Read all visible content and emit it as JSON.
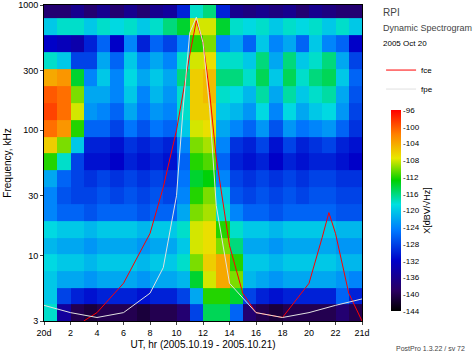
{
  "chart_data": {
    "type": "heatmap",
    "title": "RPI",
    "subtitle": "Dynamic Spectrogram",
    "annotations": [
      "2005 Oct 20",
      "PostPro 1.3.22 / sv 72"
    ],
    "x_label": "UT, hr (2005.10.19 - 2005.10.21)",
    "y_label": "Frequency, kHz",
    "log": "y",
    "legend": "right",
    "xlim": [
      0,
      24
    ],
    "ylim": [
      3,
      1000
    ],
    "xticks": [
      {
        "value": 0,
        "label": "20d"
      },
      2,
      4,
      6,
      8,
      10,
      12,
      14,
      16,
      18,
      20,
      22,
      {
        "value": 24,
        "label": "21d"
      }
    ],
    "yticks": [
      3,
      10,
      30,
      100,
      300,
      1000
    ],
    "x": [
      0.5,
      1.5,
      2.5,
      3.5,
      4.5,
      5.5,
      6.5,
      7.5,
      8.5,
      9.5,
      10.5,
      11.5,
      12.5,
      13.5,
      14.5,
      15.5,
      16.5,
      17.5,
      18.5,
      19.5,
      20.5,
      21.5,
      22.5,
      23.5
    ],
    "y": [
      3.5,
      4.7,
      6.4,
      8.7,
      12,
      16,
      22,
      30,
      41,
      56,
      76,
      104,
      142,
      194,
      265,
      362,
      494,
      675,
      920
    ],
    "z": [
      [
        -118,
        -135,
        -140,
        -141,
        -140,
        -140,
        -140,
        -141,
        -140,
        -140,
        -138,
        -128,
        -115,
        -115,
        -126,
        -138,
        -140,
        -141,
        -140,
        -140,
        -140,
        -140,
        -138,
        -140
      ],
      [
        -120,
        -128,
        -130,
        -131,
        -130,
        -130,
        -130,
        -131,
        -130,
        -130,
        -128,
        -122,
        -112,
        -112,
        -114,
        -128,
        -130,
        -131,
        -130,
        -130,
        -130,
        -130,
        -126,
        -130
      ],
      [
        -120,
        -122,
        -122,
        -123,
        -122,
        -122,
        -122,
        -123,
        -122,
        -122,
        -121,
        -114,
        -108,
        -104,
        -110,
        -121,
        -122,
        -123,
        -122,
        -122,
        -122,
        -122,
        -123,
        -124
      ],
      [
        -119,
        -120,
        -120,
        -121,
        -120,
        -120,
        -120,
        -121,
        -120,
        -120,
        -118,
        -110,
        -106,
        -104,
        -112,
        -120,
        -120,
        -121,
        -120,
        -120,
        -120,
        -120,
        -121,
        -121
      ],
      [
        -121,
        -122,
        -122,
        -123,
        -122,
        -122,
        -122,
        -123,
        -122,
        -122,
        -120,
        -108,
        -107,
        -110,
        -116,
        -122,
        -122,
        -123,
        -122,
        -122,
        -122,
        -122,
        -123,
        -123
      ],
      [
        -119,
        -120,
        -120,
        -121,
        -120,
        -120,
        -120,
        -121,
        -120,
        -120,
        -118,
        -108,
        -107,
        -112,
        -118,
        -120,
        -120,
        -121,
        -120,
        -120,
        -120,
        -120,
        -121,
        -121
      ],
      [
        -124,
        -126,
        -126,
        -127,
        -126,
        -126,
        -126,
        -127,
        -126,
        -126,
        -122,
        -110,
        -109,
        -118,
        -124,
        -126,
        -126,
        -127,
        -126,
        -126,
        -126,
        -126,
        -127,
        -127
      ],
      [
        -124,
        -127,
        -128,
        -128,
        -127,
        -128,
        -127,
        -128,
        -127,
        -128,
        -124,
        -112,
        -110,
        -120,
        -127,
        -128,
        -127,
        -128,
        -127,
        -128,
        -127,
        -127,
        -128,
        -128
      ],
      [
        -122,
        -126,
        -128,
        -129,
        -128,
        -129,
        -128,
        -129,
        -128,
        -129,
        -125,
        -114,
        -113,
        -124,
        -128,
        -129,
        -128,
        -129,
        -128,
        -129,
        -128,
        -128,
        -129,
        -129
      ],
      [
        -112,
        -118,
        -128,
        -131,
        -131,
        -132,
        -130,
        -131,
        -130,
        -131,
        -126,
        -112,
        -111,
        -126,
        -130,
        -131,
        -130,
        -132,
        -130,
        -131,
        -130,
        -130,
        -131,
        -132
      ],
      [
        -106,
        -110,
        -120,
        -130,
        -130,
        -131,
        -129,
        -130,
        -129,
        -130,
        -124,
        -110,
        -109,
        -124,
        -129,
        -130,
        -128,
        -131,
        -128,
        -130,
        -129,
        -128,
        -130,
        -131
      ],
      [
        -101,
        -103,
        -112,
        -126,
        -126,
        -128,
        -125,
        -127,
        -125,
        -126,
        -120,
        -108,
        -107,
        -122,
        -124,
        -126,
        -123,
        -127,
        -123,
        -125,
        -124,
        -123,
        -126,
        -129
      ],
      [
        -99,
        -101,
        -108,
        -123,
        -124,
        -126,
        -122,
        -125,
        -123,
        -124,
        -118,
        -106,
        -106,
        -120,
        -121,
        -123,
        -119,
        -124,
        -119,
        -122,
        -120,
        -119,
        -123,
        -128
      ],
      [
        -100,
        -101,
        -110,
        -122,
        -122,
        -124,
        -120,
        -124,
        -121,
        -123,
        -118,
        -106,
        -105,
        -118,
        -119,
        -121,
        -117,
        -122,
        -117,
        -120,
        -118,
        -117,
        -122,
        -127
      ],
      [
        -104,
        -103,
        -114,
        -124,
        -120,
        -124,
        -119,
        -122,
        -120,
        -122,
        -116,
        -106,
        -105,
        -116,
        -116,
        -118,
        -115,
        -120,
        -115,
        -118,
        -116,
        -115,
        -120,
        -126
      ],
      [
        -118,
        -120,
        -128,
        -128,
        -122,
        -126,
        -120,
        -124,
        -122,
        -124,
        -118,
        -108,
        -107,
        -118,
        -118,
        -120,
        -116,
        -122,
        -116,
        -120,
        -118,
        -116,
        -122,
        -128
      ],
      [
        -132,
        -133,
        -134,
        -130,
        -126,
        -132,
        -124,
        -130,
        -126,
        -128,
        -124,
        -112,
        -110,
        -124,
        -122,
        -126,
        -120,
        -124,
        -122,
        -126,
        -120,
        -124,
        -126,
        -132
      ],
      [
        -120,
        -118,
        -118,
        -120,
        -118,
        -119,
        -118,
        -120,
        -118,
        -116,
        -114,
        -108,
        -108,
        -114,
        -118,
        -119,
        -118,
        -120,
        -118,
        -119,
        -118,
        -120,
        -118,
        -120
      ],
      [
        -138,
        -138,
        -136,
        -138,
        -136,
        -138,
        -136,
        -138,
        -136,
        -135,
        -130,
        -118,
        -116,
        -130,
        -136,
        -137,
        -136,
        -137,
        -136,
        -138,
        -136,
        -137,
        -138,
        -138
      ]
    ],
    "colorbar": {
      "title": "X[dBV/√Hz]",
      "range": [
        -144,
        -96
      ],
      "ticks": [
        -96,
        -100,
        -104,
        -108,
        -112,
        -116,
        -120,
        -124,
        -128,
        -132,
        -136,
        -140,
        -144
      ]
    },
    "series": [
      {
        "name": "fce",
        "type": "line",
        "color": "#ff0000",
        "x": [
          3,
          4,
          6,
          8,
          9,
          10,
          11,
          11.5,
          12,
          12.5,
          13,
          14,
          15,
          16,
          18,
          20,
          21,
          21.5,
          22,
          23,
          24
        ],
        "values": [
          3,
          3.5,
          6,
          15,
          35,
          100,
          400,
          750,
          500,
          200,
          60,
          12,
          5,
          3.5,
          3.2,
          6,
          14,
          22,
          15,
          5,
          3
        ]
      },
      {
        "name": "fpe",
        "type": "line",
        "color": "#e0e0e0",
        "x": [
          0,
          2,
          4,
          6,
          8,
          9,
          10,
          10.5,
          11,
          11.5,
          12,
          12.5,
          13,
          14,
          16,
          18,
          20,
          22,
          24
        ],
        "values": [
          4,
          3.5,
          3.2,
          3.5,
          5,
          8,
          30,
          150,
          600,
          800,
          500,
          150,
          25,
          6,
          3.5,
          3.2,
          3.5,
          4,
          4.5
        ]
      }
    ]
  }
}
